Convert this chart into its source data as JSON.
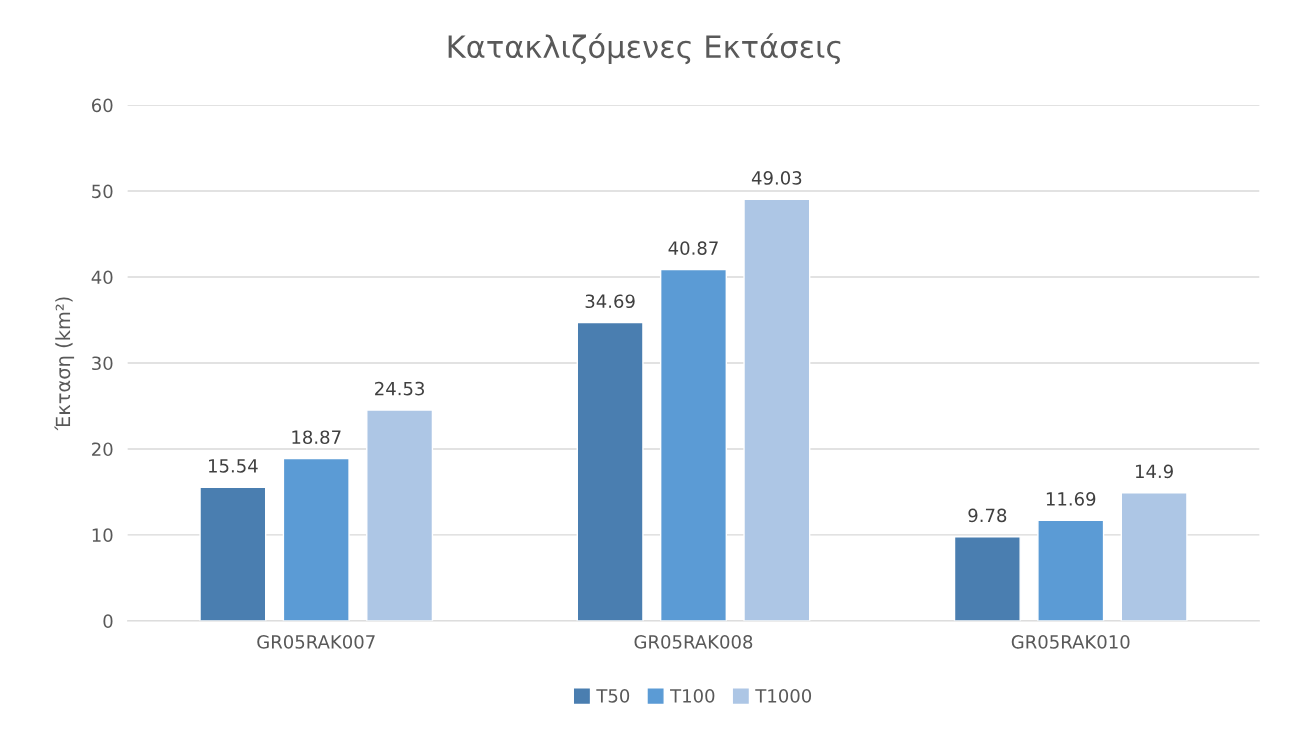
{
  "chart_data": {
    "type": "bar",
    "title": "Κατακλιζόμενες Εκτάσεις",
    "ylabel": "Έκταση (km²)",
    "categories": [
      "GR05RAK007",
      "GR05RAK008",
      "GR05RAK010"
    ],
    "series": [
      {
        "name": "T50",
        "color": "#4a7eb0",
        "values": [
          15.54,
          34.69,
          9.78
        ]
      },
      {
        "name": "T100",
        "color": "#5b9bd5",
        "values": [
          18.87,
          40.87,
          11.69
        ]
      },
      {
        "name": "T1000",
        "color": "#adc6e5",
        "values": [
          24.53,
          49.03,
          14.9
        ]
      }
    ],
    "ylim": [
      0,
      60
    ],
    "yticks": [
      0,
      10,
      20,
      30,
      40,
      50,
      60
    ],
    "grid": "y",
    "legend": "bottom",
    "data_labels": true
  }
}
